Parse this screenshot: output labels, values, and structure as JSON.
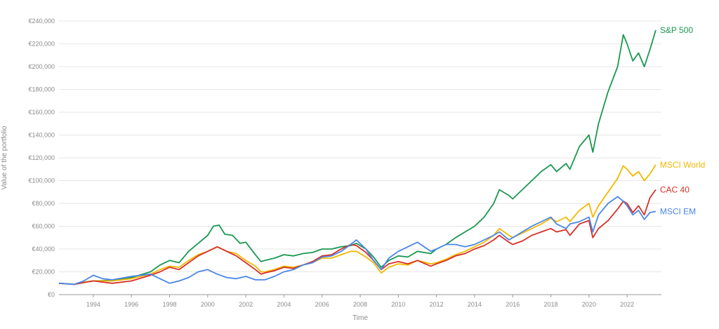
{
  "chart_data": {
    "type": "line",
    "title": "",
    "xlabel": "Time",
    "ylabel": "Value of the portfolio",
    "xlim": [
      1992.2,
      2023.8
    ],
    "ylim": [
      0,
      240000
    ],
    "x_ticks": [
      1994,
      1996,
      1998,
      2000,
      2002,
      2004,
      2006,
      2008,
      2010,
      2012,
      2014,
      2016,
      2018,
      2020,
      2022
    ],
    "y_ticks": [
      0,
      20000,
      40000,
      60000,
      80000,
      100000,
      120000,
      140000,
      160000,
      180000,
      200000,
      220000,
      240000
    ],
    "y_tick_labels": [
      "€0",
      "€20,000",
      "€40,000",
      "€60,000",
      "€80,000",
      "€100,000",
      "€120,000",
      "€140,000",
      "€160,000",
      "€180,000",
      "€200,000",
      "€220,000",
      "€240,000"
    ],
    "grid": "horizontal",
    "legend": "inline labels at line ends",
    "series": [
      {
        "name": "S&P 500",
        "color": "#1a9850",
        "points": [
          [
            1992.2,
            10000
          ],
          [
            1993.0,
            9000
          ],
          [
            1993.5,
            11000
          ],
          [
            1994.0,
            12000
          ],
          [
            1995.0,
            12500
          ],
          [
            1996.0,
            15000
          ],
          [
            1997.0,
            20000
          ],
          [
            1997.5,
            26000
          ],
          [
            1998.0,
            30000
          ],
          [
            1998.5,
            28000
          ],
          [
            1999.0,
            38000
          ],
          [
            1999.5,
            45000
          ],
          [
            2000.0,
            52000
          ],
          [
            2000.3,
            60000
          ],
          [
            2000.6,
            61000
          ],
          [
            2000.9,
            53000
          ],
          [
            2001.3,
            52000
          ],
          [
            2001.7,
            45000
          ],
          [
            2002.0,
            46000
          ],
          [
            2002.5,
            35000
          ],
          [
            2002.8,
            29000
          ],
          [
            2003.0,
            30000
          ],
          [
            2003.5,
            32000
          ],
          [
            2004.0,
            35000
          ],
          [
            2004.5,
            34000
          ],
          [
            2005.0,
            36000
          ],
          [
            2005.5,
            37000
          ],
          [
            2006.0,
            40000
          ],
          [
            2006.5,
            40000
          ],
          [
            2007.0,
            42000
          ],
          [
            2007.5,
            43000
          ],
          [
            2007.8,
            45000
          ],
          [
            2008.3,
            40000
          ],
          [
            2008.7,
            33000
          ],
          [
            2009.1,
            24000
          ],
          [
            2009.5,
            30000
          ],
          [
            2010.0,
            34000
          ],
          [
            2010.5,
            33000
          ],
          [
            2011.0,
            38000
          ],
          [
            2011.7,
            36000
          ],
          [
            2012.0,
            40000
          ],
          [
            2012.5,
            44000
          ],
          [
            2013.0,
            50000
          ],
          [
            2013.5,
            55000
          ],
          [
            2014.0,
            60000
          ],
          [
            2014.5,
            68000
          ],
          [
            2015.0,
            80000
          ],
          [
            2015.3,
            92000
          ],
          [
            2015.8,
            87000
          ],
          [
            2016.0,
            84000
          ],
          [
            2016.5,
            92000
          ],
          [
            2017.0,
            100000
          ],
          [
            2017.5,
            108000
          ],
          [
            2018.0,
            114000
          ],
          [
            2018.3,
            108000
          ],
          [
            2018.8,
            115000
          ],
          [
            2019.0,
            110000
          ],
          [
            2019.5,
            130000
          ],
          [
            2020.0,
            140000
          ],
          [
            2020.2,
            125000
          ],
          [
            2020.5,
            150000
          ],
          [
            2021.0,
            178000
          ],
          [
            2021.5,
            200000
          ],
          [
            2021.8,
            228000
          ],
          [
            2022.0,
            220000
          ],
          [
            2022.3,
            205000
          ],
          [
            2022.6,
            212000
          ],
          [
            2022.9,
            200000
          ],
          [
            2023.2,
            215000
          ],
          [
            2023.5,
            232000
          ]
        ]
      },
      {
        "name": "MSCI World",
        "color": "#f5b800",
        "points": [
          [
            1992.2,
            10000
          ],
          [
            1993.0,
            9000
          ],
          [
            1993.5,
            11000
          ],
          [
            1994.0,
            12000
          ],
          [
            1995.0,
            12000
          ],
          [
            1996.0,
            14000
          ],
          [
            1997.0,
            18000
          ],
          [
            1997.5,
            22000
          ],
          [
            1998.0,
            25000
          ],
          [
            1998.5,
            24000
          ],
          [
            1999.0,
            30000
          ],
          [
            1999.5,
            35000
          ],
          [
            2000.0,
            38000
          ],
          [
            2000.5,
            42000
          ],
          [
            2001.0,
            38000
          ],
          [
            2001.5,
            36000
          ],
          [
            2002.0,
            30000
          ],
          [
            2002.5,
            25000
          ],
          [
            2002.8,
            20000
          ],
          [
            2003.0,
            20000
          ],
          [
            2003.5,
            22000
          ],
          [
            2004.0,
            25000
          ],
          [
            2004.5,
            24000
          ],
          [
            2005.0,
            26000
          ],
          [
            2005.5,
            28000
          ],
          [
            2006.0,
            32000
          ],
          [
            2006.5,
            32000
          ],
          [
            2007.0,
            35000
          ],
          [
            2007.5,
            38000
          ],
          [
            2007.8,
            38000
          ],
          [
            2008.3,
            33000
          ],
          [
            2008.7,
            28000
          ],
          [
            2009.1,
            19000
          ],
          [
            2009.5,
            24000
          ],
          [
            2010.0,
            27000
          ],
          [
            2010.5,
            26000
          ],
          [
            2011.0,
            30000
          ],
          [
            2011.7,
            27000
          ],
          [
            2012.0,
            28000
          ],
          [
            2012.5,
            31000
          ],
          [
            2013.0,
            35000
          ],
          [
            2013.5,
            38000
          ],
          [
            2014.0,
            42000
          ],
          [
            2014.5,
            46000
          ],
          [
            2015.0,
            52000
          ],
          [
            2015.3,
            58000
          ],
          [
            2015.8,
            52000
          ],
          [
            2016.0,
            50000
          ],
          [
            2016.5,
            54000
          ],
          [
            2017.0,
            58000
          ],
          [
            2017.5,
            62000
          ],
          [
            2018.0,
            67000
          ],
          [
            2018.3,
            64000
          ],
          [
            2018.8,
            68000
          ],
          [
            2019.0,
            64000
          ],
          [
            2019.5,
            74000
          ],
          [
            2020.0,
            80000
          ],
          [
            2020.2,
            68000
          ],
          [
            2020.5,
            78000
          ],
          [
            2021.0,
            90000
          ],
          [
            2021.5,
            102000
          ],
          [
            2021.8,
            113000
          ],
          [
            2022.0,
            110000
          ],
          [
            2022.3,
            104000
          ],
          [
            2022.6,
            108000
          ],
          [
            2022.9,
            100000
          ],
          [
            2023.2,
            106000
          ],
          [
            2023.5,
            114000
          ]
        ]
      },
      {
        "name": "CAC 40",
        "color": "#d73027",
        "points": [
          [
            1992.2,
            10000
          ],
          [
            1993.0,
            9000
          ],
          [
            1993.5,
            10500
          ],
          [
            1994.0,
            12000
          ],
          [
            1995.0,
            10000
          ],
          [
            1996.0,
            12000
          ],
          [
            1997.0,
            17000
          ],
          [
            1997.5,
            20000
          ],
          [
            1998.0,
            24000
          ],
          [
            1998.5,
            22000
          ],
          [
            1999.0,
            28000
          ],
          [
            1999.5,
            34000
          ],
          [
            2000.0,
            38000
          ],
          [
            2000.5,
            42000
          ],
          [
            2001.0,
            38000
          ],
          [
            2001.5,
            34000
          ],
          [
            2002.0,
            28000
          ],
          [
            2002.5,
            22000
          ],
          [
            2002.8,
            18000
          ],
          [
            2003.0,
            19000
          ],
          [
            2003.5,
            21000
          ],
          [
            2004.0,
            24000
          ],
          [
            2004.5,
            23000
          ],
          [
            2005.0,
            26000
          ],
          [
            2005.5,
            29000
          ],
          [
            2006.0,
            34000
          ],
          [
            2006.5,
            35000
          ],
          [
            2007.0,
            40000
          ],
          [
            2007.5,
            44000
          ],
          [
            2007.8,
            43000
          ],
          [
            2008.3,
            37000
          ],
          [
            2008.7,
            30000
          ],
          [
            2009.1,
            22000
          ],
          [
            2009.5,
            27000
          ],
          [
            2010.0,
            29000
          ],
          [
            2010.5,
            27000
          ],
          [
            2011.0,
            30000
          ],
          [
            2011.7,
            25000
          ],
          [
            2012.0,
            27000
          ],
          [
            2012.5,
            30000
          ],
          [
            2013.0,
            34000
          ],
          [
            2013.5,
            36000
          ],
          [
            2014.0,
            40000
          ],
          [
            2014.5,
            43000
          ],
          [
            2015.0,
            48000
          ],
          [
            2015.3,
            52000
          ],
          [
            2015.8,
            46000
          ],
          [
            2016.0,
            44000
          ],
          [
            2016.5,
            47000
          ],
          [
            2017.0,
            52000
          ],
          [
            2017.5,
            55000
          ],
          [
            2018.0,
            58000
          ],
          [
            2018.3,
            55000
          ],
          [
            2018.8,
            57000
          ],
          [
            2019.0,
            52000
          ],
          [
            2019.5,
            62000
          ],
          [
            2020.0,
            65000
          ],
          [
            2020.2,
            50000
          ],
          [
            2020.5,
            58000
          ],
          [
            2021.0,
            65000
          ],
          [
            2021.5,
            75000
          ],
          [
            2021.8,
            82000
          ],
          [
            2022.0,
            80000
          ],
          [
            2022.3,
            72000
          ],
          [
            2022.6,
            78000
          ],
          [
            2022.9,
            70000
          ],
          [
            2023.2,
            85000
          ],
          [
            2023.5,
            92000
          ]
        ]
      },
      {
        "name": "MSCI EM",
        "color": "#4a86e8",
        "points": [
          [
            1992.2,
            10000
          ],
          [
            1993.0,
            9000
          ],
          [
            1993.5,
            12000
          ],
          [
            1994.0,
            17000
          ],
          [
            1994.5,
            14000
          ],
          [
            1995.0,
            13000
          ],
          [
            1996.0,
            16000
          ],
          [
            1997.0,
            18000
          ],
          [
            1997.5,
            14000
          ],
          [
            1998.0,
            10000
          ],
          [
            1998.5,
            12000
          ],
          [
            1999.0,
            15000
          ],
          [
            1999.5,
            20000
          ],
          [
            2000.0,
            22000
          ],
          [
            2000.5,
            18000
          ],
          [
            2001.0,
            15000
          ],
          [
            2001.5,
            14000
          ],
          [
            2002.0,
            16000
          ],
          [
            2002.5,
            13000
          ],
          [
            2003.0,
            13000
          ],
          [
            2003.5,
            16000
          ],
          [
            2004.0,
            20000
          ],
          [
            2004.5,
            22000
          ],
          [
            2005.0,
            26000
          ],
          [
            2005.5,
            28000
          ],
          [
            2006.0,
            33000
          ],
          [
            2006.5,
            34000
          ],
          [
            2007.0,
            38000
          ],
          [
            2007.5,
            44000
          ],
          [
            2007.8,
            48000
          ],
          [
            2008.3,
            40000
          ],
          [
            2008.7,
            30000
          ],
          [
            2009.1,
            22000
          ],
          [
            2009.5,
            32000
          ],
          [
            2010.0,
            38000
          ],
          [
            2010.5,
            42000
          ],
          [
            2011.0,
            46000
          ],
          [
            2011.7,
            38000
          ],
          [
            2012.0,
            40000
          ],
          [
            2012.5,
            44000
          ],
          [
            2013.0,
            44000
          ],
          [
            2013.5,
            42000
          ],
          [
            2014.0,
            44000
          ],
          [
            2014.5,
            48000
          ],
          [
            2015.0,
            52000
          ],
          [
            2015.3,
            55000
          ],
          [
            2015.8,
            48000
          ],
          [
            2016.0,
            50000
          ],
          [
            2016.5,
            55000
          ],
          [
            2017.0,
            60000
          ],
          [
            2017.5,
            64000
          ],
          [
            2018.0,
            68000
          ],
          [
            2018.3,
            62000
          ],
          [
            2018.8,
            58000
          ],
          [
            2019.0,
            62000
          ],
          [
            2019.5,
            64000
          ],
          [
            2020.0,
            68000
          ],
          [
            2020.2,
            55000
          ],
          [
            2020.5,
            70000
          ],
          [
            2021.0,
            80000
          ],
          [
            2021.5,
            86000
          ],
          [
            2021.8,
            82000
          ],
          [
            2022.0,
            78000
          ],
          [
            2022.3,
            70000
          ],
          [
            2022.6,
            74000
          ],
          [
            2022.9,
            66000
          ],
          [
            2023.2,
            72000
          ],
          [
            2023.5,
            73000
          ]
        ]
      }
    ]
  }
}
